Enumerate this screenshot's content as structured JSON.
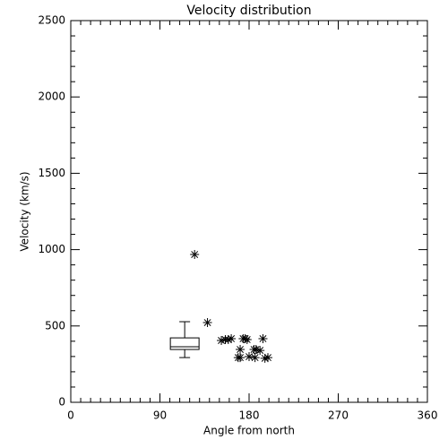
{
  "chart_data": {
    "type": "scatter",
    "title": "Velocity distribution",
    "x_label": "Angle from north",
    "y_label": "Velocity (km/s)",
    "xlim": [
      0,
      360
    ],
    "xticks": [
      0,
      90,
      180,
      270,
      360
    ],
    "ylim": [
      0,
      2500
    ],
    "yticks": [
      0,
      500,
      1000,
      1500,
      2000,
      2500
    ],
    "color": "#000000",
    "x": [
      125,
      138,
      152,
      156,
      159,
      162,
      174,
      176,
      178,
      171,
      169,
      171,
      180,
      185,
      187,
      191,
      194,
      186,
      196,
      199
    ],
    "values": [
      968,
      522,
      405,
      411,
      411,
      417,
      417,
      417,
      411,
      346,
      293,
      293,
      299,
      346,
      346,
      340,
      417,
      293,
      288,
      293
    ],
    "box": {
      "x": 115,
      "min": 293,
      "q1": 346,
      "median": 364,
      "q3": 422,
      "max": 528
    }
  }
}
